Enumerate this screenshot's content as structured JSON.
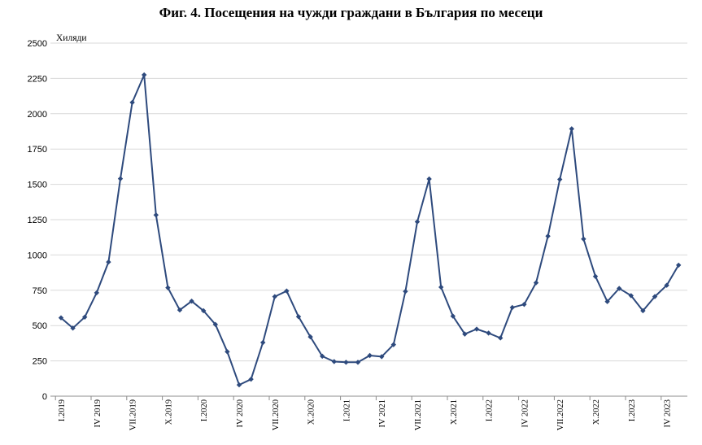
{
  "chart_data": {
    "type": "line",
    "title": "Фиг. 4. Посещения на чужди граждани в България по месеци",
    "unit_label": "Хиляди",
    "ylim": [
      0,
      2500
    ],
    "yticks": [
      0,
      250,
      500,
      750,
      1000,
      1250,
      1500,
      1750,
      2000,
      2250,
      2500
    ],
    "grid": "horizontal",
    "legend": "none",
    "line_color": "#2e4a7d",
    "x_tick_labels": [
      {
        "index": 0,
        "label": "I.2019"
      },
      {
        "index": 3,
        "label": "IV 2019"
      },
      {
        "index": 6,
        "label": "VII.2019"
      },
      {
        "index": 9,
        "label": "X.2019"
      },
      {
        "index": 12,
        "label": "I.2020"
      },
      {
        "index": 15,
        "label": "IV 2020"
      },
      {
        "index": 18,
        "label": "VII.2020"
      },
      {
        "index": 21,
        "label": "X.2020"
      },
      {
        "index": 24,
        "label": "I.2021"
      },
      {
        "index": 27,
        "label": "IV 2021"
      },
      {
        "index": 30,
        "label": "VII.2021"
      },
      {
        "index": 33,
        "label": "X.2021"
      },
      {
        "index": 36,
        "label": "I.2022"
      },
      {
        "index": 39,
        "label": "IV 2022"
      },
      {
        "index": 42,
        "label": "VII.2022"
      },
      {
        "index": 45,
        "label": "X.2022"
      },
      {
        "index": 48,
        "label": "I.2023"
      },
      {
        "index": 51,
        "label": "IV 2023"
      }
    ],
    "series": [
      {
        "values": [
          555,
          482,
          560,
          732,
          950,
          1540,
          2080,
          2275,
          1283,
          768,
          610,
          673,
          605,
          508,
          315,
          80,
          120,
          380,
          705,
          745,
          563,
          420,
          283,
          245,
          240,
          240,
          288,
          280,
          365,
          742,
          1235,
          1538,
          772,
          567,
          440,
          475,
          447,
          412,
          628,
          650,
          803,
          1133,
          1535,
          1893,
          1113,
          848,
          670,
          763,
          712,
          605,
          705,
          785,
          928
        ]
      }
    ]
  }
}
